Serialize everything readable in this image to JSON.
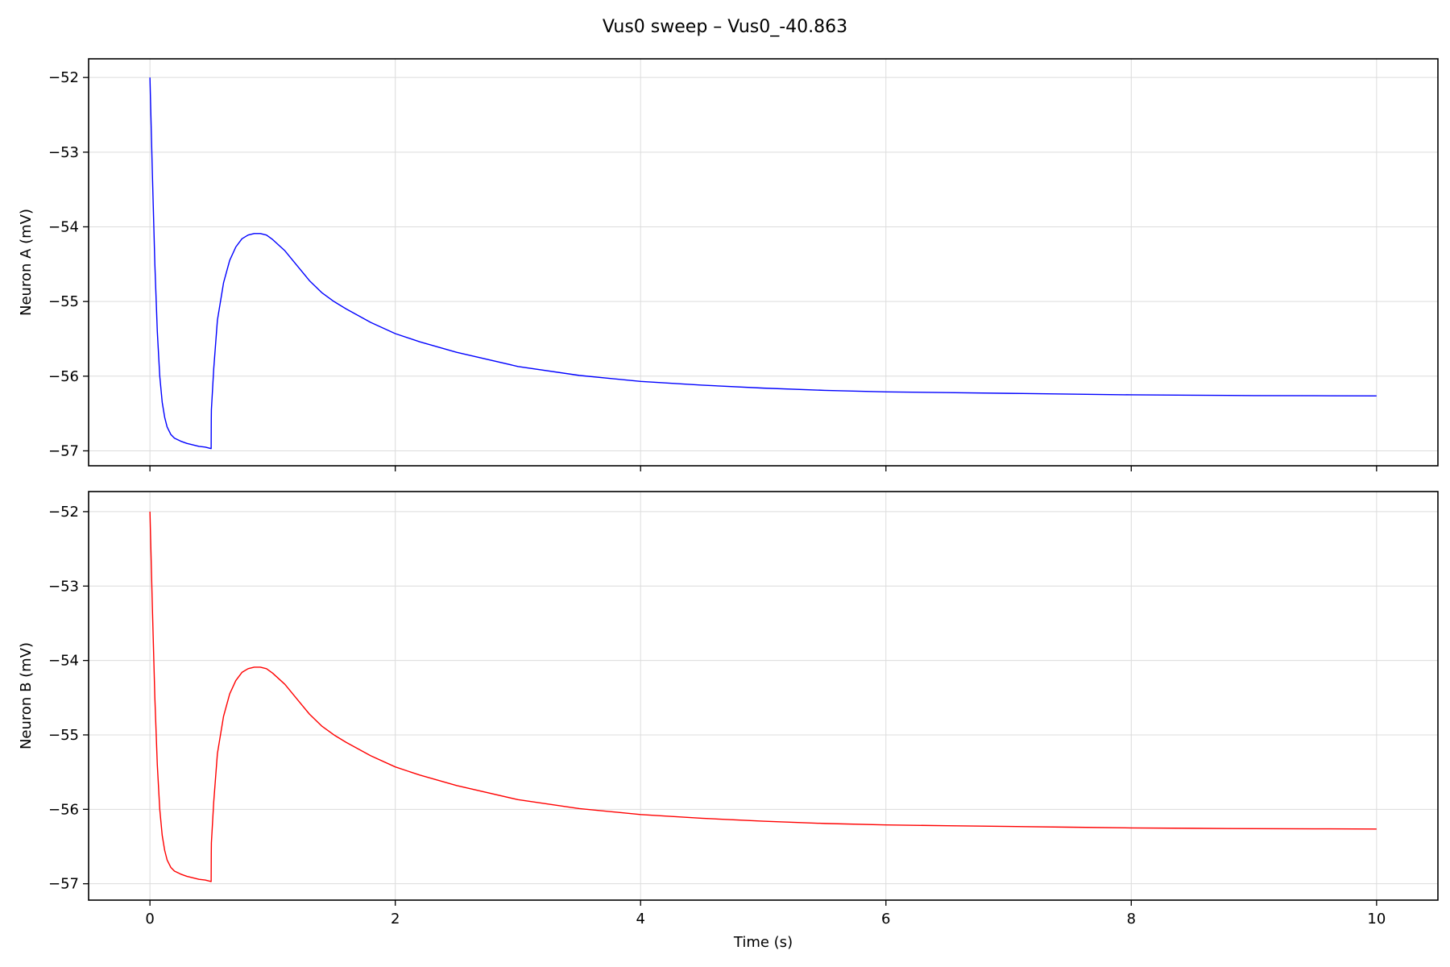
{
  "figure": {
    "title": "Vus0 sweep – Vus0_-40.863"
  },
  "chart_data": [
    {
      "type": "line",
      "panel": "top",
      "xlabel": "",
      "ylabel": "Neuron A (mV)",
      "xlim": [
        -0.5,
        10.5
      ],
      "ylim": [
        -57.2,
        -51.75
      ],
      "xticks": [
        0,
        2,
        4,
        6,
        8,
        10
      ],
      "show_xticklabels": false,
      "yticks": [
        -57,
        -56,
        -55,
        -54,
        -53,
        -52
      ],
      "ytick_labels": [
        "−57",
        "−56",
        "−55",
        "−54",
        "−53",
        "−52"
      ],
      "grid": true,
      "legend": "none",
      "series": [
        {
          "color": "#0000ff",
          "x": [
            0.0,
            0.02,
            0.04,
            0.06,
            0.08,
            0.1,
            0.12,
            0.14,
            0.17,
            0.2,
            0.25,
            0.3,
            0.35,
            0.4,
            0.45,
            0.499,
            0.5,
            0.501,
            0.52,
            0.55,
            0.6,
            0.65,
            0.7,
            0.75,
            0.8,
            0.85,
            0.9,
            0.95,
            1.0,
            1.1,
            1.2,
            1.3,
            1.4,
            1.5,
            1.6,
            1.8,
            2.0,
            2.2,
            2.5,
            3.0,
            3.5,
            4.0,
            4.5,
            5.0,
            5.5,
            6.0,
            6.5,
            7.0,
            7.5,
            8.0,
            8.5,
            9.0,
            9.5,
            10.0
          ],
          "y": [
            -52.0,
            -53.3,
            -54.5,
            -55.4,
            -56.0,
            -56.35,
            -56.55,
            -56.68,
            -56.78,
            -56.83,
            -56.87,
            -56.9,
            -56.92,
            -56.94,
            -56.95,
            -56.97,
            -56.6,
            -56.45,
            -55.9,
            -55.25,
            -54.75,
            -54.45,
            -54.27,
            -54.16,
            -54.11,
            -54.09,
            -54.09,
            -54.11,
            -54.17,
            -54.32,
            -54.52,
            -54.72,
            -54.88,
            -55.0,
            -55.1,
            -55.28,
            -55.43,
            -55.54,
            -55.68,
            -55.87,
            -55.99,
            -56.07,
            -56.12,
            -56.16,
            -56.19,
            -56.21,
            -56.22,
            -56.23,
            -56.24,
            -56.25,
            -56.255,
            -56.26,
            -56.262,
            -56.265
          ]
        }
      ]
    },
    {
      "type": "line",
      "panel": "bottom",
      "xlabel": "Time (s)",
      "ylabel": "Neuron B (mV)",
      "xlim": [
        -0.5,
        10.5
      ],
      "ylim": [
        -57.22,
        -51.73
      ],
      "xticks": [
        0,
        2,
        4,
        6,
        8,
        10
      ],
      "xtick_labels": [
        "0",
        "2",
        "4",
        "6",
        "8",
        "10"
      ],
      "show_xticklabels": true,
      "yticks": [
        -57,
        -56,
        -55,
        -54,
        -53,
        -52
      ],
      "ytick_labels": [
        "−57",
        "−56",
        "−55",
        "−54",
        "−53",
        "−52"
      ],
      "grid": true,
      "legend": "none",
      "series": [
        {
          "color": "#ff0000",
          "x": [
            0.0,
            0.02,
            0.04,
            0.06,
            0.08,
            0.1,
            0.12,
            0.14,
            0.17,
            0.2,
            0.25,
            0.3,
            0.35,
            0.4,
            0.45,
            0.499,
            0.5,
            0.501,
            0.52,
            0.55,
            0.6,
            0.65,
            0.7,
            0.75,
            0.8,
            0.85,
            0.9,
            0.95,
            1.0,
            1.1,
            1.2,
            1.3,
            1.4,
            1.5,
            1.6,
            1.8,
            2.0,
            2.2,
            2.5,
            3.0,
            3.5,
            4.0,
            4.5,
            5.0,
            5.5,
            6.0,
            6.5,
            7.0,
            7.5,
            8.0,
            8.5,
            9.0,
            9.5,
            10.0
          ],
          "y": [
            -52.0,
            -53.3,
            -54.5,
            -55.4,
            -56.0,
            -56.35,
            -56.55,
            -56.68,
            -56.78,
            -56.83,
            -56.87,
            -56.9,
            -56.92,
            -56.94,
            -56.95,
            -56.97,
            -56.6,
            -56.45,
            -55.9,
            -55.25,
            -54.75,
            -54.45,
            -54.27,
            -54.16,
            -54.11,
            -54.09,
            -54.09,
            -54.11,
            -54.17,
            -54.32,
            -54.52,
            -54.72,
            -54.88,
            -55.0,
            -55.1,
            -55.28,
            -55.43,
            -55.54,
            -55.68,
            -55.87,
            -55.99,
            -56.07,
            -56.12,
            -56.16,
            -56.19,
            -56.21,
            -56.22,
            -56.23,
            -56.24,
            -56.25,
            -56.255,
            -56.26,
            -56.262,
            -56.265
          ]
        }
      ]
    }
  ]
}
